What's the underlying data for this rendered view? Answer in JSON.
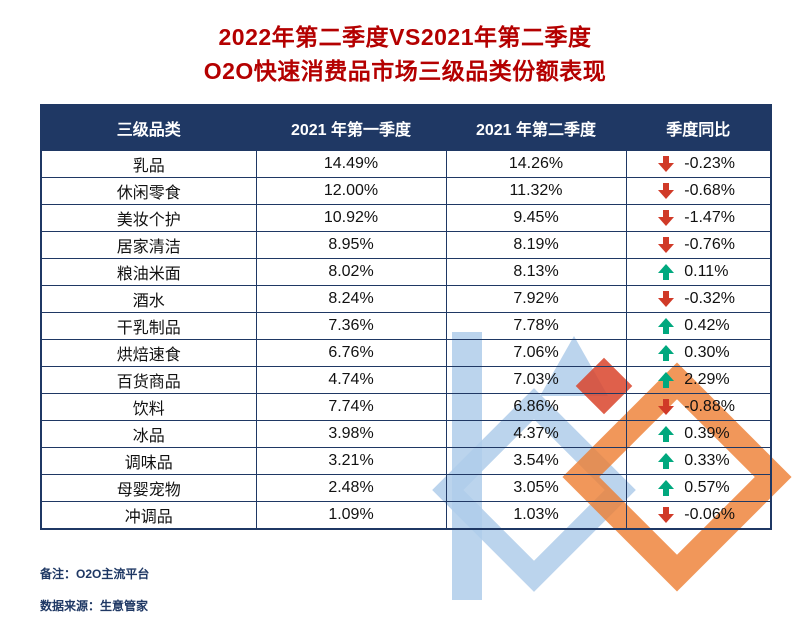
{
  "title": {
    "line1": "2022年第二季度VS2021年第二季度",
    "line2": "O2O快速消费品市场三级品类份额表现"
  },
  "chart_data": {
    "type": "table",
    "title": "2022年第二季度VS2021年第二季度 O2O快速消费品市场三级品类份额表现",
    "columns": [
      "三级品类",
      "2021 年第一季度",
      "2021 年第二季度",
      "季度同比"
    ],
    "rows": [
      {
        "category": "乳品",
        "q1": "14.49%",
        "q2": "14.26%",
        "direction": "down",
        "change": "-0.23%"
      },
      {
        "category": "休闲零食",
        "q1": "12.00%",
        "q2": "11.32%",
        "direction": "down",
        "change": "-0.68%"
      },
      {
        "category": "美妆个护",
        "q1": "10.92%",
        "q2": "9.45%",
        "direction": "down",
        "change": "-1.47%"
      },
      {
        "category": "居家清洁",
        "q1": "8.95%",
        "q2": "8.19%",
        "direction": "down",
        "change": "-0.76%"
      },
      {
        "category": "粮油米面",
        "q1": "8.02%",
        "q2": "8.13%",
        "direction": "up",
        "change": "0.11%"
      },
      {
        "category": "酒水",
        "q1": "8.24%",
        "q2": "7.92%",
        "direction": "down",
        "change": "-0.32%"
      },
      {
        "category": "干乳制品",
        "q1": "7.36%",
        "q2": "7.78%",
        "direction": "up",
        "change": "0.42%"
      },
      {
        "category": "烘焙速食",
        "q1": "6.76%",
        "q2": "7.06%",
        "direction": "up",
        "change": "0.30%"
      },
      {
        "category": "百货商品",
        "q1": "4.74%",
        "q2": "7.03%",
        "direction": "up",
        "change": "2.29%"
      },
      {
        "category": "饮料",
        "q1": "7.74%",
        "q2": "6.86%",
        "direction": "down",
        "change": "-0.88%"
      },
      {
        "category": "冰品",
        "q1": "3.98%",
        "q2": "4.37%",
        "direction": "up",
        "change": "0.39%"
      },
      {
        "category": "调味品",
        "q1": "3.21%",
        "q2": "3.54%",
        "direction": "up",
        "change": "0.33%"
      },
      {
        "category": "母婴宠物",
        "q1": "2.48%",
        "q2": "3.05%",
        "direction": "up",
        "change": "0.57%"
      },
      {
        "category": "冲调品",
        "q1": "1.09%",
        "q2": "1.03%",
        "direction": "down",
        "change": "-0.06%"
      }
    ]
  },
  "footer": {
    "note": "备注：O2O主流平台",
    "source": "数据来源：生意管家"
  },
  "icons": {
    "up": "up-arrow-icon",
    "down": "down-arrow-icon"
  },
  "colors": {
    "title_red": "#B40000",
    "header_bg": "#1F3864",
    "table_border": "#1F3864",
    "up_green": "#00A87E",
    "down_red": "#D03A28",
    "watermark_blue": "#AFCDEA",
    "watermark_orange": "#ED7D31",
    "watermark_red": "#D9442C"
  }
}
